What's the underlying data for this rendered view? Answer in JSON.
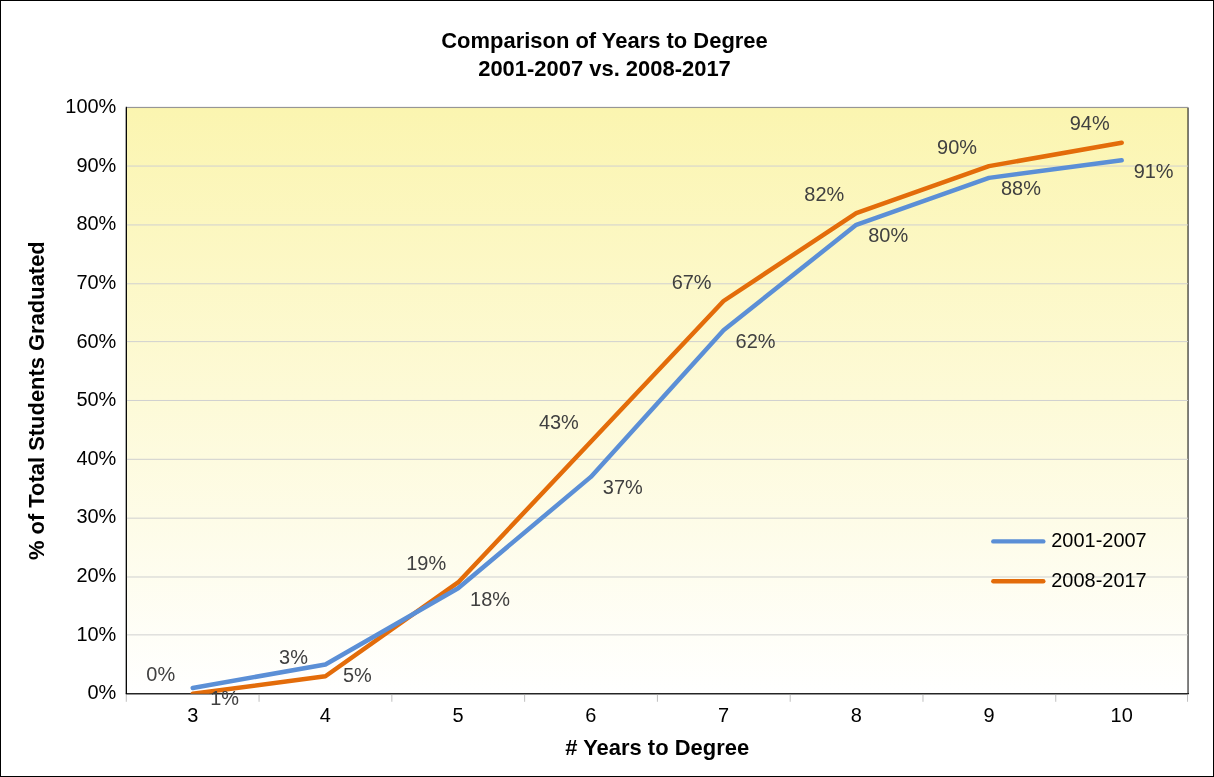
{
  "chart_data": {
    "type": "line",
    "title": "Comparison of Years to Degree",
    "subtitle": "2001-2007 vs. 2008-2017",
    "xlabel": "# Years to Degree",
    "ylabel": "% of Total Students Graduated",
    "categories": [
      "3",
      "4",
      "5",
      "6",
      "7",
      "8",
      "9",
      "10"
    ],
    "series": [
      {
        "name": "2001-2007",
        "color": "#5b8fd6",
        "values": [
          1,
          5,
          18,
          37,
          62,
          80,
          88,
          91
        ],
        "value_labels": [
          "1%",
          "5%",
          "18%",
          "37%",
          "62%",
          "80%",
          "88%",
          "91%"
        ]
      },
      {
        "name": "2008-2017",
        "color": "#e36c0a",
        "values": [
          0,
          3,
          19,
          43,
          67,
          82,
          90,
          94
        ],
        "value_labels": [
          "0%",
          "3%",
          "19%",
          "43%",
          "67%",
          "82%",
          "90%",
          "94%"
        ]
      }
    ],
    "ylim": [
      0,
      100
    ],
    "yticks": [
      {
        "value": 0,
        "label": "0%"
      },
      {
        "value": 10,
        "label": "10%"
      },
      {
        "value": 20,
        "label": "20%"
      },
      {
        "value": 30,
        "label": "30%"
      },
      {
        "value": 40,
        "label": "40%"
      },
      {
        "value": 50,
        "label": "50%"
      },
      {
        "value": 60,
        "label": "60%"
      },
      {
        "value": 70,
        "label": "70%"
      },
      {
        "value": 80,
        "label": "80%"
      },
      {
        "value": 90,
        "label": "90%"
      },
      {
        "value": 100,
        "label": "100%"
      }
    ],
    "grid": "y",
    "legend": "right",
    "marker": "none",
    "line_style": "solid"
  }
}
